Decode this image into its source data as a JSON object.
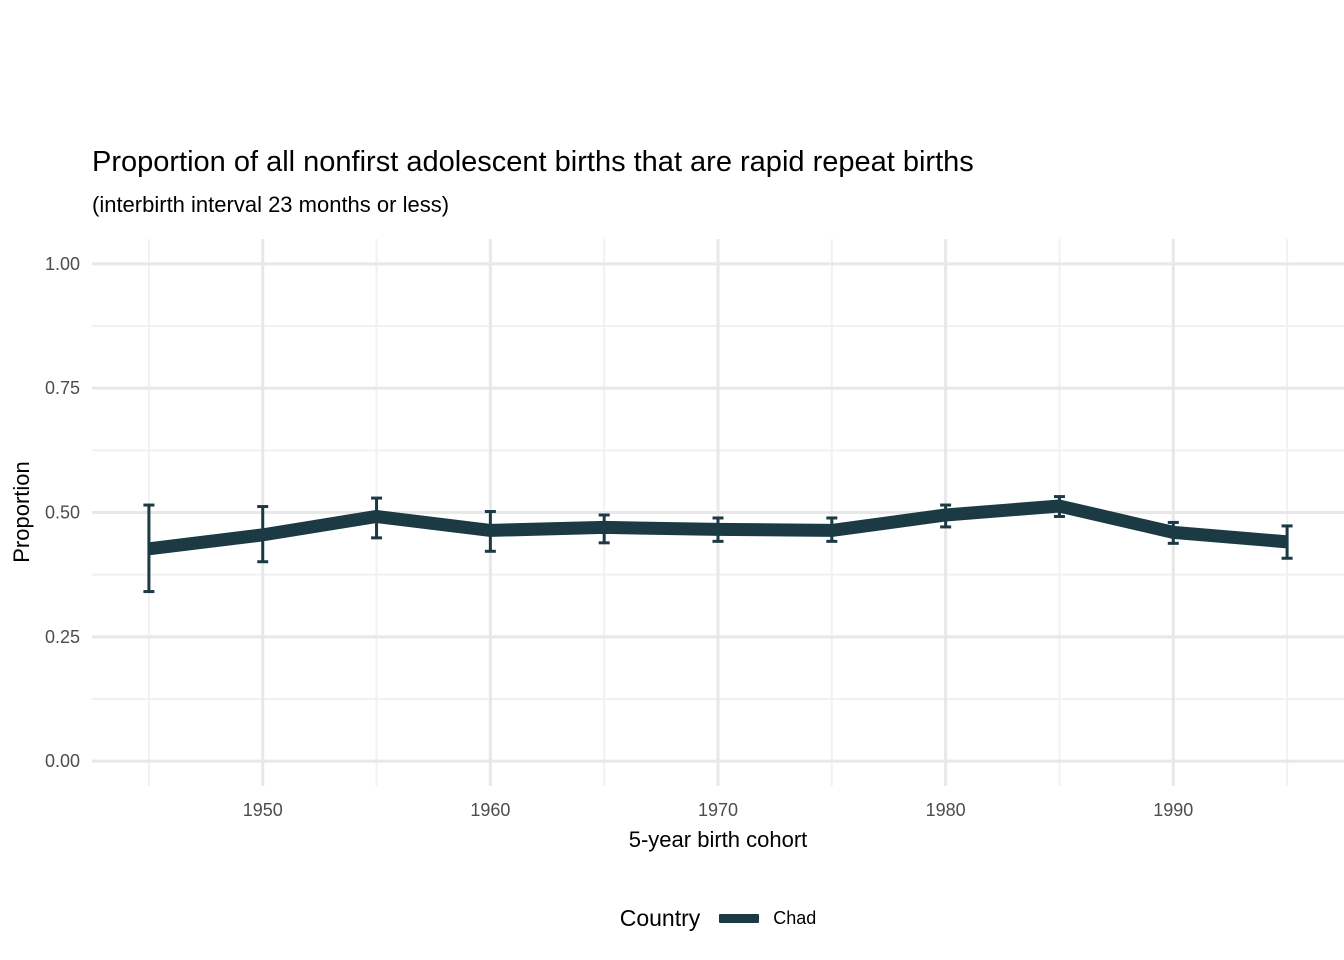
{
  "chart_data": {
    "type": "line",
    "title": "Proportion of all nonfirst adolescent births that are rapid repeat births",
    "subtitle": "(interbirth interval 23 months or less)",
    "xlabel": "5-year birth cohort",
    "ylabel": "Proportion",
    "legend": {
      "title": "Country",
      "position": "bottom",
      "entries": [
        {
          "label": "Chad",
          "color": "#1b3a43"
        }
      ]
    },
    "xlim": [
      1942.5,
      1997.5
    ],
    "ylim": [
      -0.05,
      1.05
    ],
    "grid": {
      "show": true,
      "major_color": "#e8e8e8",
      "minor_color": "#f1f1f1"
    },
    "axis_text_color": "#4d4d4d",
    "x_ticks": [
      {
        "value": 1950,
        "label": "1950"
      },
      {
        "value": 1960,
        "label": "1960"
      },
      {
        "value": 1970,
        "label": "1970"
      },
      {
        "value": 1980,
        "label": "1980"
      },
      {
        "value": 1990,
        "label": "1990"
      }
    ],
    "x_minor": [
      1945,
      1955,
      1965,
      1975,
      1985,
      1995
    ],
    "y_ticks": [
      {
        "value": 0.0,
        "label": "0.00"
      },
      {
        "value": 0.25,
        "label": "0.25"
      },
      {
        "value": 0.5,
        "label": "0.50"
      },
      {
        "value": 0.75,
        "label": "0.75"
      },
      {
        "value": 1.0,
        "label": "1.00"
      }
    ],
    "y_minor": [
      0.125,
      0.375,
      0.625,
      0.875
    ],
    "series": [
      {
        "name": "Chad",
        "color": "#1b3a43",
        "points": [
          {
            "x": 1945,
            "y": 0.427,
            "lo": 0.341,
            "hi": 0.515
          },
          {
            "x": 1950,
            "y": 0.455,
            "lo": 0.401,
            "hi": 0.512
          },
          {
            "x": 1955,
            "y": 0.492,
            "lo": 0.449,
            "hi": 0.529
          },
          {
            "x": 1960,
            "y": 0.464,
            "lo": 0.422,
            "hi": 0.502
          },
          {
            "x": 1965,
            "y": 0.47,
            "lo": 0.439,
            "hi": 0.495
          },
          {
            "x": 1970,
            "y": 0.466,
            "lo": 0.442,
            "hi": 0.489
          },
          {
            "x": 1975,
            "y": 0.464,
            "lo": 0.442,
            "hi": 0.489
          },
          {
            "x": 1980,
            "y": 0.495,
            "lo": 0.471,
            "hi": 0.515
          },
          {
            "x": 1985,
            "y": 0.513,
            "lo": 0.492,
            "hi": 0.532
          },
          {
            "x": 1990,
            "y": 0.46,
            "lo": 0.438,
            "hi": 0.48
          },
          {
            "x": 1995,
            "y": 0.441,
            "lo": 0.408,
            "hi": 0.473
          }
        ]
      }
    ]
  }
}
